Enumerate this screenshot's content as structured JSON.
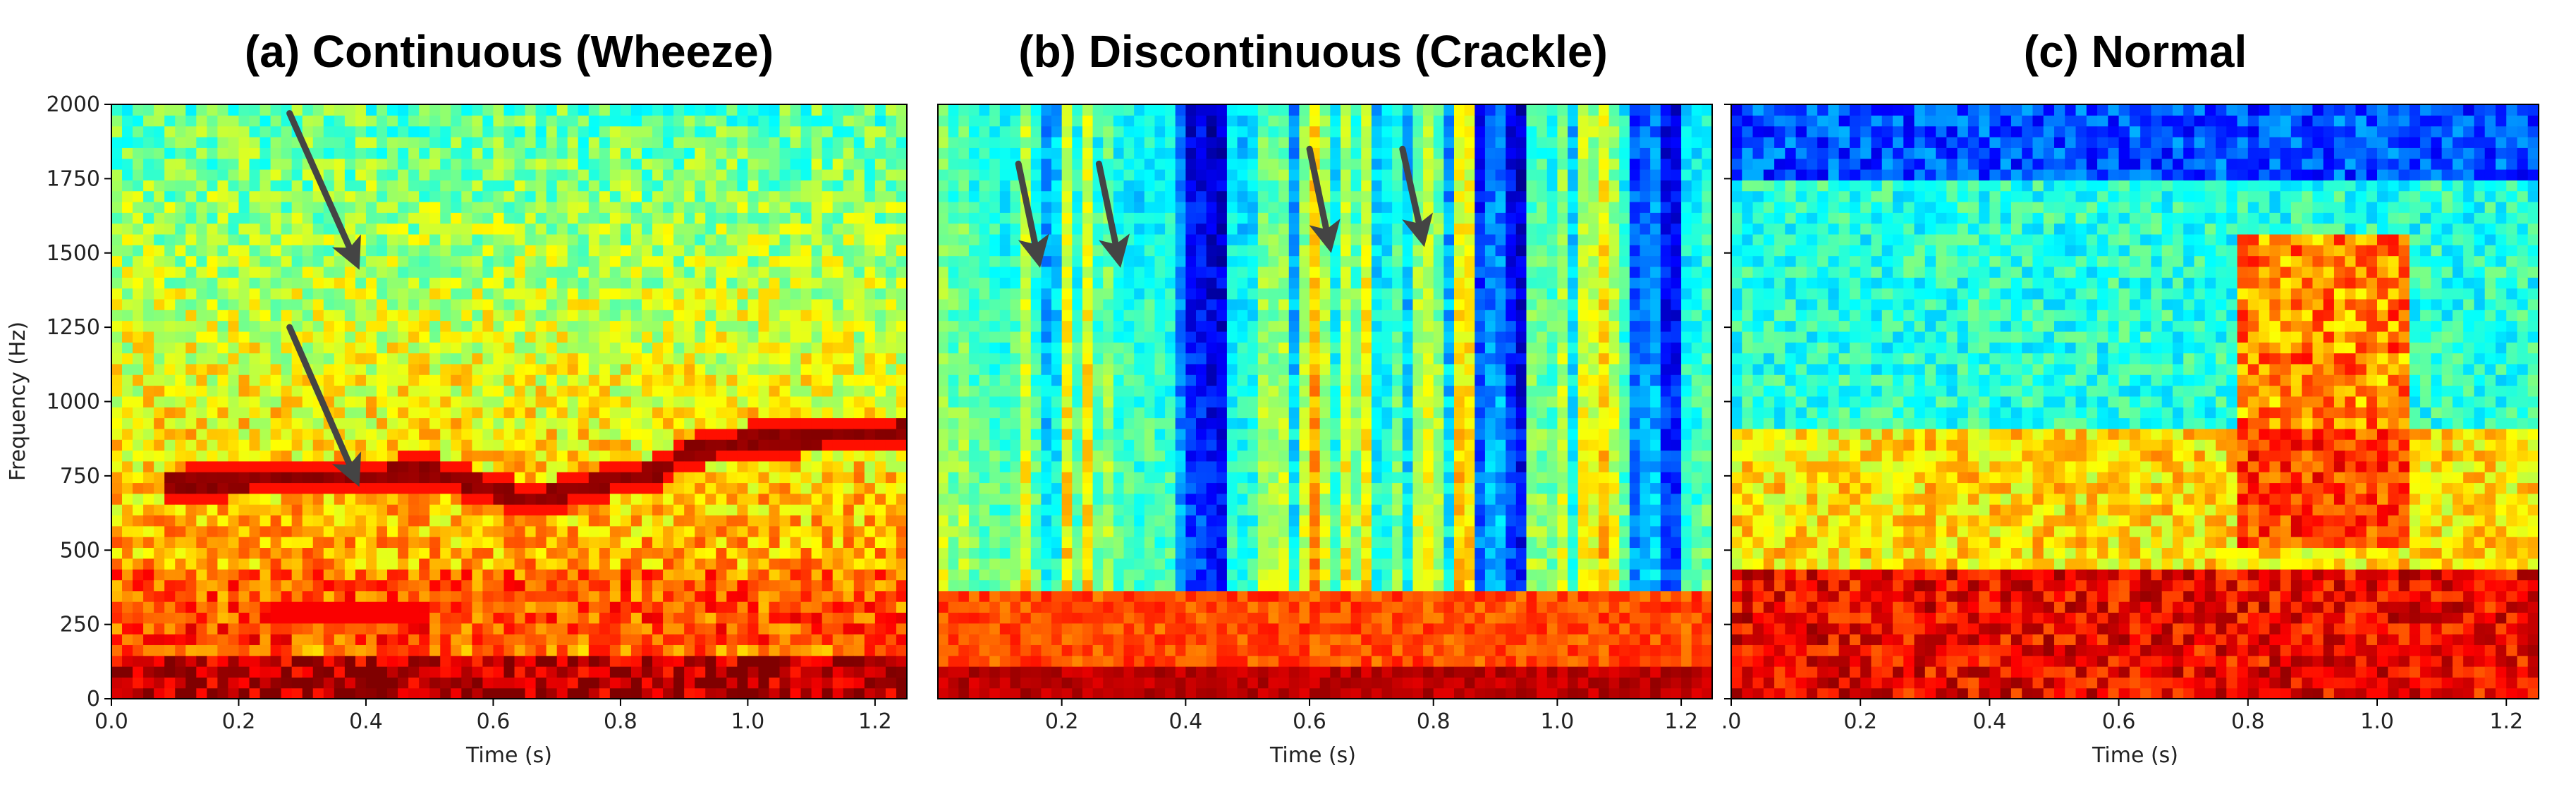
{
  "chart_data": [
    {
      "type": "heatmap",
      "title": "(a) Continuous (Wheeze)",
      "xlabel": "Time (s)",
      "ylabel": "Frequency (Hz)",
      "xlim": [
        0.0,
        1.25
      ],
      "ylim": [
        0,
        2000
      ],
      "xticks": [
        "0.0",
        "0.2",
        "0.4",
        "0.6",
        "0.8",
        "1.0",
        "1.2"
      ],
      "xtick_values": [
        0.0,
        0.2,
        0.4,
        0.6,
        0.8,
        1.0,
        1.2
      ],
      "yticks": [
        "0",
        "250",
        "500",
        "750",
        "1000",
        "1250",
        "1500",
        "1750",
        "2000"
      ],
      "ytick_values": [
        0,
        250,
        500,
        750,
        1000,
        1250,
        1500,
        1750,
        2000
      ],
      "colormap": "jet",
      "style": "wheeze",
      "wheeze_track": [
        [
          0.1,
          720
        ],
        [
          0.2,
          735
        ],
        [
          0.3,
          745
        ],
        [
          0.4,
          750
        ],
        [
          0.5,
          765
        ],
        [
          0.6,
          705
        ],
        [
          0.66,
          665
        ],
        [
          0.73,
          705
        ],
        [
          0.8,
          745
        ],
        [
          0.86,
          760
        ],
        [
          0.9,
          825
        ],
        [
          1.0,
          870
        ],
        [
          1.1,
          880
        ],
        [
          1.23,
          900
        ]
      ],
      "annotations": [
        {
          "type": "arrow",
          "from": [
            0.28,
            1970
          ],
          "to": [
            0.38,
            1490
          ]
        },
        {
          "type": "arrow",
          "from": [
            0.28,
            1250
          ],
          "to": [
            0.38,
            760
          ]
        }
      ]
    },
    {
      "type": "heatmap",
      "title": "(b) Discontinuous (Crackle)",
      "xlabel": "Time (s)",
      "ylabel": "",
      "xlim": [
        0.0,
        1.25
      ],
      "ylim": [
        0,
        2000
      ],
      "xticks": [
        "0.2",
        "0.4",
        "0.6",
        "0.8",
        "1.0",
        "1.2"
      ],
      "xtick_values": [
        0.2,
        0.4,
        0.6,
        0.8,
        1.0,
        1.2
      ],
      "yticks": [],
      "ytick_values": [],
      "colormap": "jet",
      "style": "crackle",
      "annotations": [
        {
          "type": "arrow",
          "from": [
            0.13,
            1800
          ],
          "to": [
            0.16,
            1500
          ]
        },
        {
          "type": "arrow",
          "from": [
            0.26,
            1800
          ],
          "to": [
            0.29,
            1500
          ]
        },
        {
          "type": "arrow",
          "from": [
            0.6,
            1850
          ],
          "to": [
            0.63,
            1550
          ]
        },
        {
          "type": "arrow",
          "from": [
            0.75,
            1850
          ],
          "to": [
            0.78,
            1570
          ]
        }
      ]
    },
    {
      "type": "heatmap",
      "title": "(c) Normal",
      "xlabel": "Time (s)",
      "ylabel": "",
      "xlim": [
        0.0,
        1.25
      ],
      "ylim": [
        0,
        2000
      ],
      "xticks": [
        ".0",
        "0.2",
        "0.4",
        "0.6",
        "0.8",
        "1.0",
        "1.2"
      ],
      "xtick_values": [
        0.0,
        0.2,
        0.4,
        0.6,
        0.8,
        1.0,
        1.2
      ],
      "yticks": [],
      "ytick_values": [
        0,
        250,
        500,
        750,
        1000,
        1250,
        1500,
        1750,
        2000
      ],
      "colormap": "jet",
      "style": "normal",
      "annotations": []
    }
  ]
}
